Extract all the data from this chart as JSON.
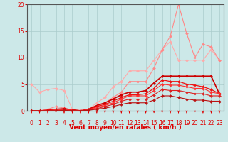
{
  "background_color": "#cce8e8",
  "grid_color": "#aacccc",
  "xlabel": "Vent moyen/en rafales ( km/h )",
  "xlim": [
    -0.5,
    23.5
  ],
  "ylim": [
    0,
    20
  ],
  "yticks": [
    0,
    5,
    10,
    15,
    20
  ],
  "xticks": [
    0,
    1,
    2,
    3,
    4,
    5,
    6,
    7,
    8,
    9,
    10,
    11,
    12,
    13,
    14,
    15,
    16,
    17,
    18,
    19,
    20,
    21,
    22,
    23
  ],
  "lines": [
    {
      "x": [
        0,
        1,
        2,
        3,
        4,
        5,
        6,
        7,
        8,
        9,
        10,
        11,
        12,
        13,
        14,
        15,
        16,
        17,
        18,
        19,
        20,
        21,
        22,
        23
      ],
      "y": [
        5.0,
        3.5,
        4.0,
        4.2,
        3.8,
        0.3,
        0.1,
        0.3,
        1.5,
        2.5,
        4.5,
        5.5,
        7.5,
        7.5,
        7.5,
        9.5,
        11.5,
        13.0,
        9.5,
        9.5,
        9.5,
        9.5,
        11.5,
        9.5
      ],
      "color": "#ffaaaa",
      "marker": "D",
      "markersize": 2,
      "linewidth": 0.8
    },
    {
      "x": [
        0,
        1,
        2,
        3,
        4,
        5,
        6,
        7,
        8,
        9,
        10,
        11,
        12,
        13,
        14,
        15,
        16,
        17,
        18,
        19,
        20,
        21,
        22,
        23
      ],
      "y": [
        0.0,
        0.0,
        0.3,
        0.8,
        0.5,
        0.1,
        0.0,
        0.1,
        0.8,
        1.5,
        2.5,
        3.5,
        5.5,
        5.5,
        5.5,
        8.0,
        11.5,
        14.0,
        20.0,
        14.5,
        10.0,
        12.5,
        12.0,
        9.5
      ],
      "color": "#ff8888",
      "marker": "D",
      "markersize": 2,
      "linewidth": 0.8
    },
    {
      "x": [
        0,
        1,
        2,
        3,
        4,
        5,
        6,
        7,
        8,
        9,
        10,
        11,
        12,
        13,
        14,
        15,
        16,
        17,
        18,
        19,
        20,
        21,
        22,
        23
      ],
      "y": [
        0.0,
        0.0,
        0.1,
        0.3,
        0.4,
        0.2,
        0.0,
        0.3,
        1.0,
        1.5,
        2.2,
        3.0,
        3.5,
        3.5,
        3.8,
        5.2,
        6.5,
        6.5,
        6.5,
        6.5,
        6.5,
        6.5,
        6.5,
        3.2
      ],
      "color": "#cc0000",
      "marker": "D",
      "markersize": 2,
      "linewidth": 1.2
    },
    {
      "x": [
        0,
        1,
        2,
        3,
        4,
        5,
        6,
        7,
        8,
        9,
        10,
        11,
        12,
        13,
        14,
        15,
        16,
        17,
        18,
        19,
        20,
        21,
        22,
        23
      ],
      "y": [
        0.0,
        0.0,
        0.1,
        0.2,
        0.3,
        0.1,
        0.0,
        0.2,
        0.8,
        1.2,
        1.8,
        2.5,
        3.0,
        3.0,
        3.2,
        4.2,
        5.8,
        5.5,
        5.5,
        5.0,
        4.8,
        4.5,
        4.0,
        3.2
      ],
      "color": "#ee1111",
      "marker": "D",
      "markersize": 2,
      "linewidth": 0.9
    },
    {
      "x": [
        0,
        1,
        2,
        3,
        4,
        5,
        6,
        7,
        8,
        9,
        10,
        11,
        12,
        13,
        14,
        15,
        16,
        17,
        18,
        19,
        20,
        21,
        22,
        23
      ],
      "y": [
        0.0,
        0.0,
        0.0,
        0.2,
        0.2,
        0.1,
        0.0,
        0.2,
        0.6,
        1.0,
        1.5,
        2.2,
        2.8,
        2.8,
        2.8,
        3.8,
        5.0,
        4.8,
        4.8,
        4.5,
        4.2,
        4.2,
        3.5,
        3.2
      ],
      "color": "#ff3333",
      "marker": "D",
      "markersize": 2,
      "linewidth": 0.8
    },
    {
      "x": [
        0,
        1,
        2,
        3,
        4,
        5,
        6,
        7,
        8,
        9,
        10,
        11,
        12,
        13,
        14,
        15,
        16,
        17,
        18,
        19,
        20,
        21,
        22,
        23
      ],
      "y": [
        0.0,
        0.0,
        0.0,
        0.1,
        0.1,
        0.0,
        0.0,
        0.1,
        0.4,
        0.8,
        1.2,
        1.8,
        2.2,
        2.2,
        2.2,
        3.0,
        4.0,
        3.8,
        3.8,
        3.5,
        3.2,
        3.2,
        2.8,
        2.8
      ],
      "color": "#dd2222",
      "marker": "D",
      "markersize": 2,
      "linewidth": 0.8
    },
    {
      "x": [
        0,
        1,
        2,
        3,
        4,
        5,
        6,
        7,
        8,
        9,
        10,
        11,
        12,
        13,
        14,
        15,
        16,
        17,
        18,
        19,
        20,
        21,
        22,
        23
      ],
      "y": [
        0.0,
        0.0,
        0.0,
        0.0,
        0.1,
        0.0,
        0.0,
        0.1,
        0.3,
        0.5,
        0.8,
        1.2,
        1.5,
        1.5,
        1.5,
        2.0,
        2.8,
        2.8,
        2.5,
        2.2,
        2.0,
        2.0,
        1.8,
        1.8
      ],
      "color": "#bb1111",
      "marker": "D",
      "markersize": 2,
      "linewidth": 0.8
    }
  ],
  "tick_color": "#dd0000",
  "label_color": "#dd0000",
  "axis_color": "#555555",
  "label_fontsize": 6.5,
  "tick_fontsize": 5.5
}
